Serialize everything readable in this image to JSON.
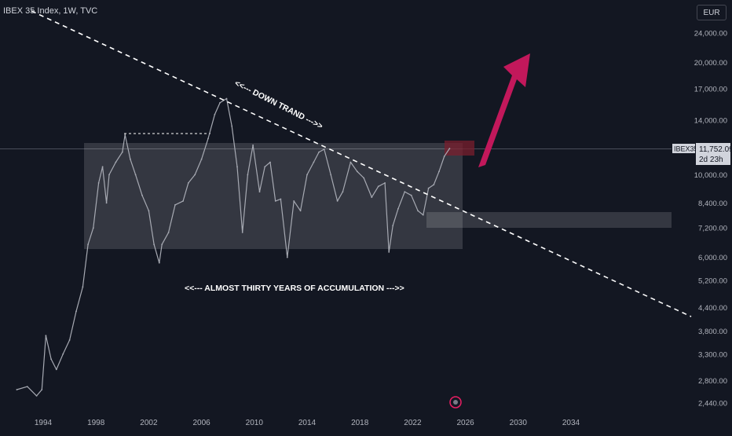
{
  "header": {
    "title": "IBEX 35 Index, 1W, TVC"
  },
  "currency_button": {
    "label": "EUR"
  },
  "price_tag": {
    "symbol": "IBEX35",
    "price": "11,752.09",
    "countdown": "2d 23h"
  },
  "annotations": {
    "down_trend": "<<--- DOWN TRAND --->>",
    "accumulation": "<<--- ALMOST THIRTY YEARS OF ACCUMULATION --->>"
  },
  "colors": {
    "background": "#131722",
    "price_line": "#a7aab3",
    "trendline": "#ffffff",
    "accumulation_box": "#ffffff",
    "arrow": "#c2185b",
    "target_box": "#7a1f2e",
    "axis_text": "#b2b5be"
  },
  "chart_data": {
    "type": "line",
    "title": "IBEX 35 Index, 1W, TVC",
    "y_scale": "log",
    "y_ticks": [
      2440,
      2800,
      3300,
      3800,
      4400,
      5200,
      6000,
      7200,
      8400,
      10000,
      14000,
      17000,
      20000,
      24000
    ],
    "y_tick_labels": [
      "2,440.00",
      "2,800.00",
      "3,300.00",
      "3,800.00",
      "4,400.00",
      "5,200.00",
      "6,000.00",
      "7,200.00",
      "8,400.00",
      "10,000.00",
      "14,000.00",
      "17,000.00",
      "20,000.00",
      "24,000.00"
    ],
    "x_tick_labels": [
      "1994",
      "1998",
      "2002",
      "2006",
      "2010",
      "2014",
      "2018",
      "2022",
      "2026",
      "2030",
      "2034"
    ],
    "x_ticks": [
      1994,
      1998,
      2002,
      2006,
      2010,
      2014,
      2018,
      2022,
      2026,
      2030,
      2034
    ],
    "grid": false,
    "series": [
      {
        "values": [
          [
            1992.0,
            2650
          ],
          [
            1992.8,
            2700
          ],
          [
            1993.5,
            2550
          ],
          [
            1993.9,
            2650
          ],
          [
            1994.2,
            3700
          ],
          [
            1994.6,
            3200
          ],
          [
            1995.0,
            3000
          ],
          [
            1995.5,
            3300
          ],
          [
            1996.0,
            3600
          ],
          [
            1996.5,
            4300
          ],
          [
            1997.0,
            5000
          ],
          [
            1997.4,
            6500
          ],
          [
            1997.8,
            7200
          ],
          [
            1998.2,
            9500
          ],
          [
            1998.5,
            10500
          ],
          [
            1998.8,
            8400
          ],
          [
            1999.0,
            10000
          ],
          [
            1999.5,
            10800
          ],
          [
            2000.0,
            11500
          ],
          [
            2000.2,
            12800
          ],
          [
            2000.6,
            11000
          ],
          [
            2001.0,
            10000
          ],
          [
            2001.5,
            8800
          ],
          [
            2002.0,
            8000
          ],
          [
            2002.4,
            6500
          ],
          [
            2002.8,
            5800
          ],
          [
            2003.0,
            6500
          ],
          [
            2003.5,
            7000
          ],
          [
            2004.0,
            8300
          ],
          [
            2004.6,
            8500
          ],
          [
            2005.0,
            9500
          ],
          [
            2005.5,
            10000
          ],
          [
            2006.0,
            11000
          ],
          [
            2006.5,
            12500
          ],
          [
            2007.0,
            14500
          ],
          [
            2007.4,
            15600
          ],
          [
            2007.9,
            16000
          ],
          [
            2008.3,
            13500
          ],
          [
            2008.7,
            10500
          ],
          [
            2009.1,
            7000
          ],
          [
            2009.5,
            10000
          ],
          [
            2009.9,
            12000
          ],
          [
            2010.4,
            9000
          ],
          [
            2010.8,
            10500
          ],
          [
            2011.2,
            10800
          ],
          [
            2011.6,
            8500
          ],
          [
            2012.0,
            8600
          ],
          [
            2012.5,
            6000
          ],
          [
            2013.0,
            8500
          ],
          [
            2013.5,
            8000
          ],
          [
            2014.0,
            10000
          ],
          [
            2014.5,
            10800
          ],
          [
            2014.9,
            11500
          ],
          [
            2015.3,
            11700
          ],
          [
            2015.8,
            10000
          ],
          [
            2016.3,
            8500
          ],
          [
            2016.7,
            9000
          ],
          [
            2017.3,
            10800
          ],
          [
            2017.8,
            10200
          ],
          [
            2018.3,
            9800
          ],
          [
            2018.9,
            8700
          ],
          [
            2019.4,
            9300
          ],
          [
            2019.9,
            9500
          ],
          [
            2020.2,
            6200
          ],
          [
            2020.5,
            7300
          ],
          [
            2020.9,
            8100
          ],
          [
            2021.4,
            9000
          ],
          [
            2021.9,
            8800
          ],
          [
            2022.4,
            8000
          ],
          [
            2022.8,
            7800
          ],
          [
            2023.2,
            9200
          ],
          [
            2023.6,
            9400
          ],
          [
            2024.0,
            10200
          ],
          [
            2024.4,
            11200
          ],
          [
            2024.8,
            11750
          ]
        ]
      }
    ]
  }
}
